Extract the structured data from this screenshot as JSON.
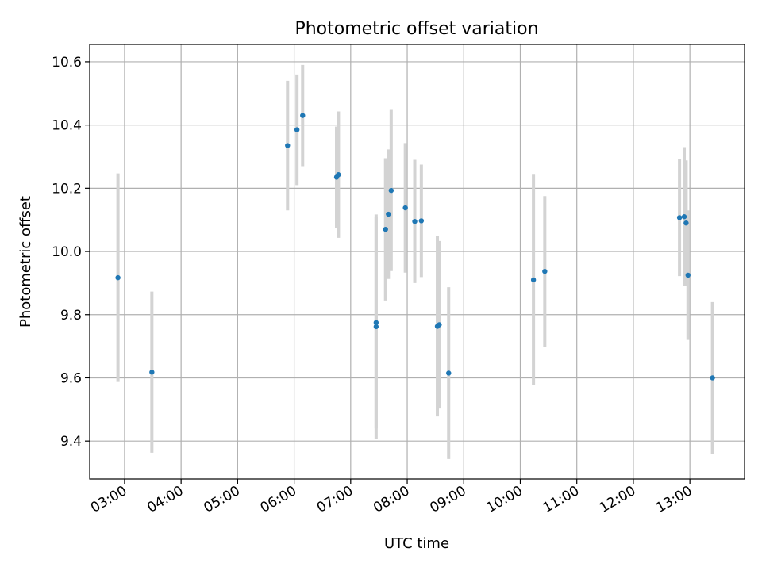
{
  "chart_data": {
    "type": "scatter",
    "title": "Photometric offset variation",
    "xlabel": "UTC time",
    "ylabel": "Photometric offset",
    "x_axis_kind": "time",
    "xlim": [
      "02:23",
      "13:58"
    ],
    "ylim": [
      9.28,
      10.655
    ],
    "x_ticks": [
      "03:00",
      "04:00",
      "05:00",
      "06:00",
      "07:00",
      "08:00",
      "09:00",
      "10:00",
      "11:00",
      "12:00",
      "13:00"
    ],
    "y_ticks": [
      "9.4",
      "9.6",
      "9.8",
      "10.0",
      "10.2",
      "10.4",
      "10.6"
    ],
    "grid": true,
    "colors": {
      "marker": "#1f77b4",
      "errorbar": "#d3d3d3",
      "grid": "#b0b0b0"
    },
    "points": [
      {
        "x": "02:53",
        "y": 9.917,
        "err": 0.33
      },
      {
        "x": "03:29",
        "y": 9.618,
        "err": 0.255
      },
      {
        "x": "05:53",
        "y": 10.335,
        "err": 0.205
      },
      {
        "x": "06:03",
        "y": 10.385,
        "err": 0.175
      },
      {
        "x": "06:09",
        "y": 10.43,
        "err": 0.16
      },
      {
        "x": "06:45",
        "y": 10.235,
        "err": 0.16
      },
      {
        "x": "06:47",
        "y": 10.243,
        "err": 0.2
      },
      {
        "x": "07:27",
        "y": 9.775,
        "err": 0.335
      },
      {
        "x": "07:27",
        "y": 9.762,
        "err": 0.355
      },
      {
        "x": "07:37",
        "y": 10.07,
        "err": 0.225
      },
      {
        "x": "07:40",
        "y": 10.118,
        "err": 0.205
      },
      {
        "x": "07:43",
        "y": 10.193,
        "err": 0.255
      },
      {
        "x": "07:58",
        "y": 10.138,
        "err": 0.205
      },
      {
        "x": "08:08",
        "y": 10.095,
        "err": 0.195
      },
      {
        "x": "08:15",
        "y": 10.097,
        "err": 0.178
      },
      {
        "x": "08:32",
        "y": 9.763,
        "err": 0.285
      },
      {
        "x": "08:34",
        "y": 9.768,
        "err": 0.265
      },
      {
        "x": "08:44",
        "y": 9.615,
        "err": 0.272
      },
      {
        "x": "10:14",
        "y": 9.91,
        "err": 0.333
      },
      {
        "x": "10:26",
        "y": 9.937,
        "err": 0.238
      },
      {
        "x": "12:49",
        "y": 10.107,
        "err": 0.185
      },
      {
        "x": "12:54",
        "y": 10.11,
        "err": 0.22
      },
      {
        "x": "12:56",
        "y": 10.09,
        "err": 0.198
      },
      {
        "x": "12:58",
        "y": 9.925,
        "err": 0.205
      },
      {
        "x": "13:24",
        "y": 9.6,
        "err": 0.24
      }
    ]
  }
}
